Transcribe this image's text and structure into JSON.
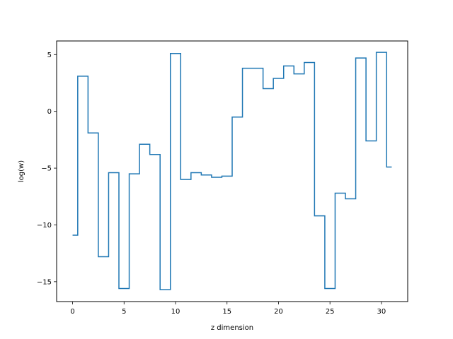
{
  "chart_data": {
    "type": "line",
    "drawstyle": "steps-mid",
    "xlabel": "z dimension",
    "ylabel": "log(w)",
    "xlim": [
      -1.55,
      32.55
    ],
    "ylim": [
      -16.75,
      6.2
    ],
    "xticks": [
      0,
      5,
      10,
      15,
      20,
      25,
      30
    ],
    "yticks": [
      -15,
      -10,
      -5,
      0,
      5
    ],
    "grid": false,
    "legend": "none",
    "series": [
      {
        "color": "#1f77b4",
        "x": [
          0,
          1,
          2,
          3,
          4,
          5,
          6,
          7,
          8,
          9,
          10,
          11,
          12,
          13,
          14,
          15,
          16,
          17,
          18,
          19,
          20,
          21,
          22,
          23,
          24,
          25,
          26,
          27,
          28,
          29,
          30,
          31
        ],
        "values": [
          -10.9,
          3.1,
          -1.9,
          -12.8,
          -5.4,
          -15.6,
          -5.5,
          -2.9,
          -3.8,
          -15.7,
          5.1,
          -6.0,
          -5.4,
          -5.6,
          -5.8,
          -5.7,
          -0.5,
          3.8,
          3.8,
          2.0,
          2.9,
          4.0,
          3.3,
          4.3,
          -9.2,
          -15.6,
          -7.2,
          -7.7,
          4.7,
          -2.6,
          5.2,
          -4.9
        ]
      }
    ]
  }
}
